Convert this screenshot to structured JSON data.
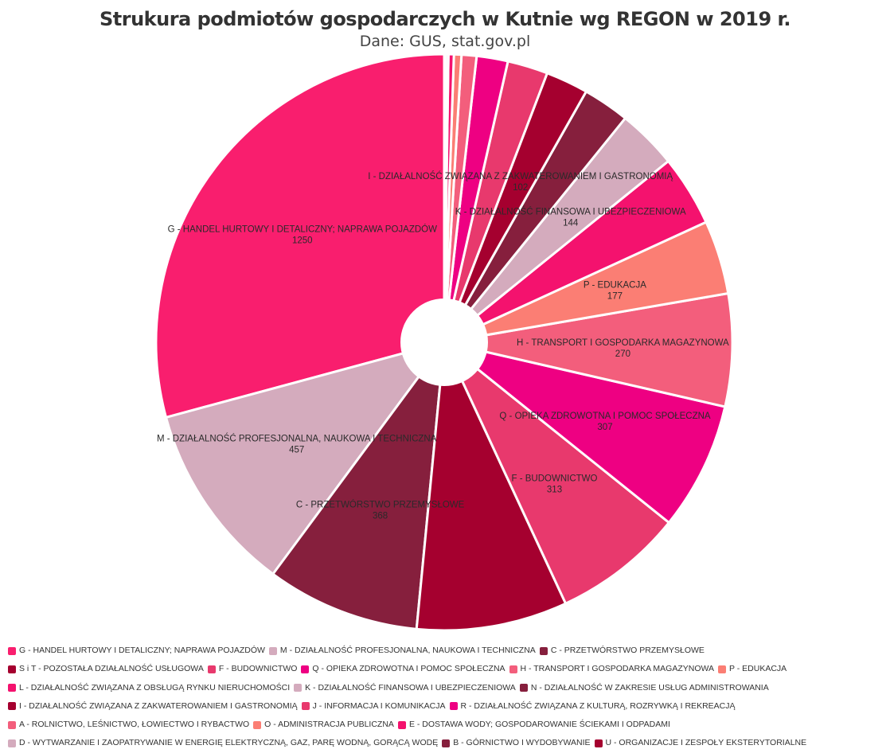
{
  "chart_data": {
    "type": "pie",
    "title": "Strukura podmiotów gospodarczych w Kutnie wg REGON w 2019 r.",
    "subtitle": "Dane: GUS, stat.gov.pl",
    "slices": [
      {
        "label": "G - HANDEL HURTOWY I DETALICZNY; NAPRAWA POJAZDÓW",
        "value": 1250,
        "color": "#f91e6e",
        "show_label": true
      },
      {
        "label": "M - DZIAŁALNOŚĆ PROFESJONALNA, NAUKOWA I TECHNICZNA",
        "value": 457,
        "color": "#d4abbd",
        "show_label": true
      },
      {
        "label": "C - PRZETWÓRSTWO PRZEMYSŁOWE",
        "value": 368,
        "color": "#861f3d",
        "show_label": true
      },
      {
        "label": "S i T - POZOSTAŁA DZIAŁALNOŚĆ USŁUGOWA",
        "value": 362,
        "color": "#a5002f",
        "show_label": false
      },
      {
        "label": "F - BUDOWNICTWO",
        "value": 313,
        "color": "#e8396d",
        "show_label": true
      },
      {
        "label": "Q - OPIEKA ZDROWOTNA I POMOC SPOŁECZNA",
        "value": 307,
        "color": "#ee0082",
        "show_label": true
      },
      {
        "label": "H - TRANSPORT I GOSPODARKA MAGAZYNOWA",
        "value": 270,
        "color": "#f35e7c",
        "show_label": true
      },
      {
        "label": "P - EDUKACJA",
        "value": 177,
        "color": "#fb7e74",
        "show_label": true
      },
      {
        "label": "L - DZIAŁALNOŚĆ ZWIĄZANA Z OBSŁUGĄ RYNKU NIERUCHOMOŚCI",
        "value": 170,
        "color": "#f4126e",
        "show_label": false
      },
      {
        "label": "K - DZIAŁALNOŚĆ FINANSOWA I UBEZPIECZENIOWA",
        "value": 144,
        "color": "#d4abbd",
        "show_label": true
      },
      {
        "label": "N - DZIAŁALNOŚĆ W ZAKRESIE USŁUG ADMINISTROWANIA",
        "value": 112,
        "color": "#861f3d",
        "show_label": false
      },
      {
        "label": "I - DZIAŁALNOŚĆ ZWIĄZANA Z ZAKWATEROWANIEM I GASTRONOMIĄ",
        "value": 102,
        "color": "#a5002f",
        "show_label": true
      },
      {
        "label": "J - INFORMACJA I KOMUNIKACJA",
        "value": 97,
        "color": "#e8396d",
        "show_label": false
      },
      {
        "label": "R - DZIAŁALNOŚĆ ZWIĄZANA Z KULTURĄ, ROZRYWKĄ I REKREACJĄ",
        "value": 75,
        "color": "#ee0082",
        "show_label": false
      },
      {
        "label": "A - ROLNICTWO, LEŚNICTWO, ŁOWIECTWO I RYBACTWO",
        "value": 36,
        "color": "#f35e7c",
        "show_label": false
      },
      {
        "label": "O - ADMINISTRACJA PUBLICZNA",
        "value": 18,
        "color": "#fb7e74",
        "show_label": false
      },
      {
        "label": "E - DOSTAWA WODY; GOSPODAROWANIE ŚCIEKAMI I ODPADAMI",
        "value": 13,
        "color": "#f4126e",
        "show_label": false
      },
      {
        "label": "D - WYTWARZANIE I ZAOPATRYWANIE W ENERGIĘ ELEKTRYCZNĄ, GAZ, PARĘ WODNĄ, GORĄCĄ WODĘ",
        "value": 6,
        "color": "#d4abbd",
        "show_label": false
      },
      {
        "label": "B - GÓRNICTWO I WYDOBYWANIE",
        "value": 3,
        "color": "#861f3d",
        "show_label": false
      },
      {
        "label": "U - ORGANIZACJE I ZESPOŁY EKSTERYTORIALNE",
        "value": 1,
        "color": "#a5002f",
        "show_label": false
      }
    ],
    "legend_position": "bottom",
    "grid": false
  }
}
